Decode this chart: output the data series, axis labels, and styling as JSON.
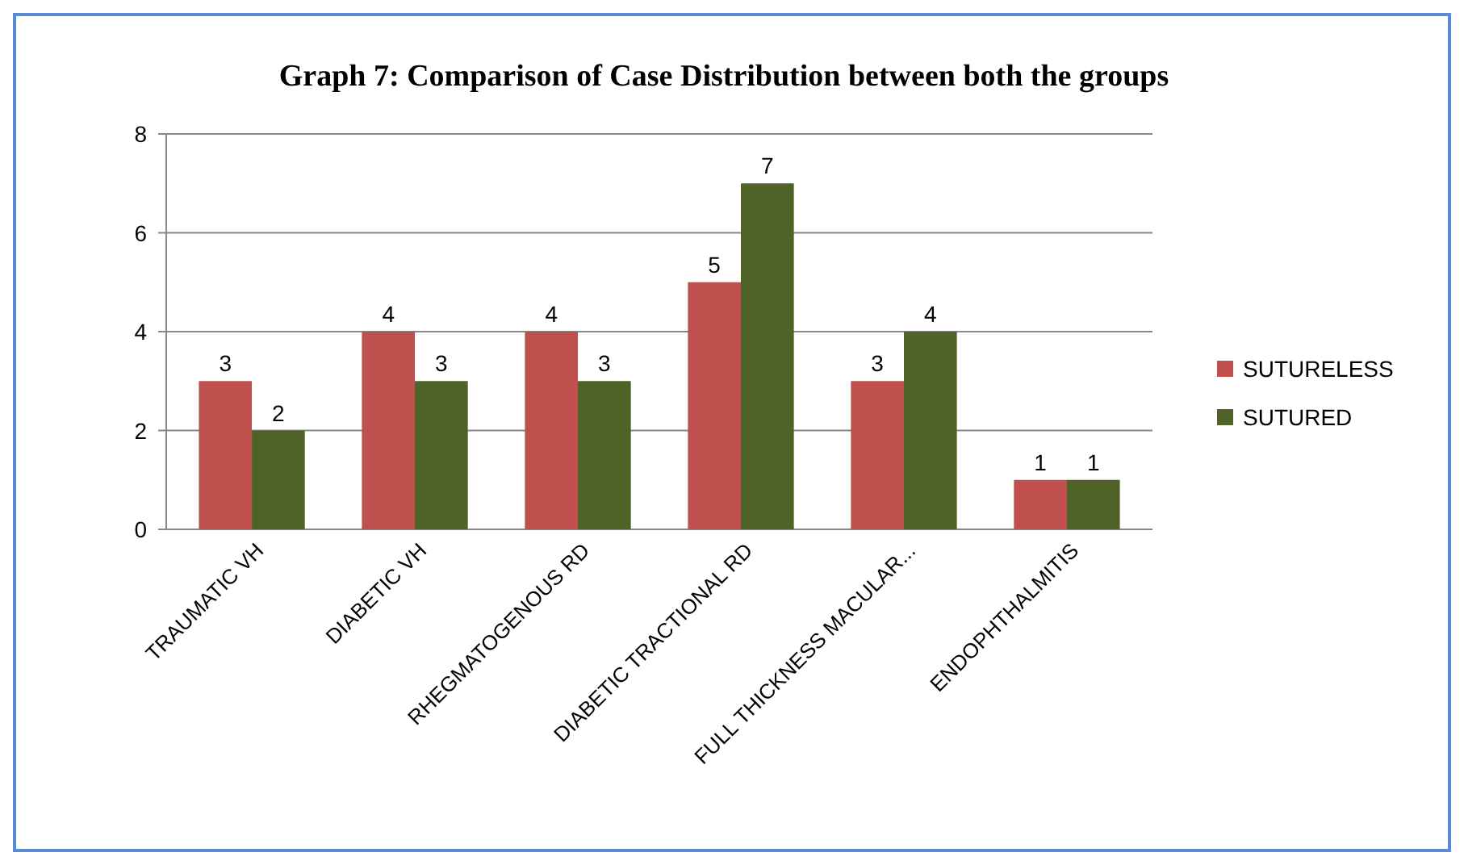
{
  "chart_data": {
    "type": "bar",
    "title": "Graph 7:  Comparison of Case Distribution between both the groups",
    "categories": [
      "TRAUMATIC VH",
      "DIABETIC VH",
      "RHEGMATOGENOUS RD",
      "DIABETIC TRACTIONAL RD",
      "FULL THICKNESS MACULAR...",
      "ENDOPHTHALMITIS"
    ],
    "series": [
      {
        "name": "SUTURELESS",
        "color": "#c0504d",
        "values": [
          3,
          4,
          4,
          5,
          3,
          1
        ]
      },
      {
        "name": "SUTURED",
        "color": "#4f6228",
        "values": [
          2,
          3,
          3,
          7,
          4,
          1
        ]
      }
    ],
    "ylim": [
      0,
      8
    ],
    "yticks": [
      0,
      2,
      4,
      6,
      8
    ],
    "grid": "y",
    "legend": "right",
    "data_labels": true
  }
}
